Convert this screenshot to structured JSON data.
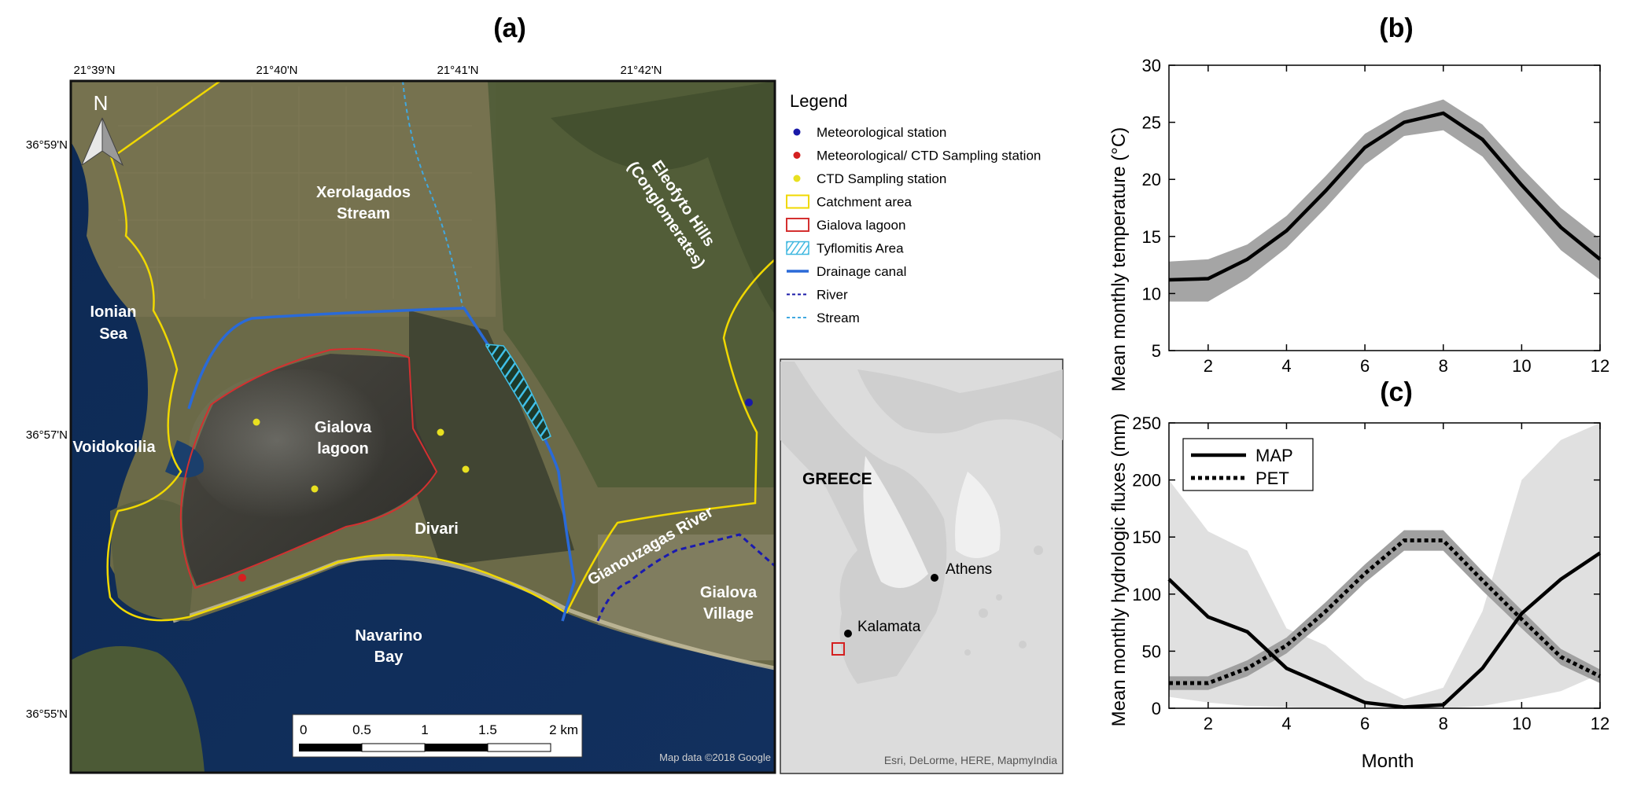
{
  "panel_a": {
    "label": "(a)",
    "lon_ticks": [
      "21°39'N",
      "21°40'N",
      "21°41'N",
      "21°42'N"
    ],
    "lat_ticks": [
      "36°59'N",
      "36°57'N",
      "36°55'N"
    ],
    "north_arrow": "N",
    "place_labels": {
      "xerolagados_1": "Xerolagados",
      "xerolagados_2": "Stream",
      "eleofyto_1": "Eleofyto Hills",
      "eleofyto_2": "(Conglomerates)",
      "ionian_1": "Ionian",
      "ionian_2": "Sea",
      "voidokoilia": "Voidokoilia",
      "gialova_lagoon_1": "Gialova",
      "gialova_lagoon_2": "lagoon",
      "divari": "Divari",
      "gianouzagas": "Gianouzagas River",
      "gialova_village_1": "Gialova",
      "gialova_village_2": "Village",
      "navarino_1": "Navarino",
      "navarino_2": "Bay"
    },
    "scale_bar": {
      "ticks": [
        "0",
        "0.5",
        "1",
        "1.5",
        "2 km"
      ]
    },
    "attribution": "Map data ©2018 Google",
    "legend": {
      "title": "Legend",
      "items": [
        {
          "label": "Meteorological station",
          "symbol": "dot",
          "color": "#1a1aa8"
        },
        {
          "label": "Meteorological/ CTD Sampling station",
          "symbol": "dot",
          "color": "#d42020"
        },
        {
          "label": "CTD Sampling station",
          "symbol": "dot",
          "color": "#e8e020"
        },
        {
          "label": "Catchment  area",
          "symbol": "box",
          "color": "#f0d800"
        },
        {
          "label": "Gialova lagoon",
          "symbol": "box",
          "color": "#d43030"
        },
        {
          "label": "Tyflomitis Area",
          "symbol": "hatch",
          "color": "#40b8e0"
        },
        {
          "label": "Drainage canal",
          "symbol": "line",
          "color": "#2a6ad8"
        },
        {
          "label": "River",
          "symbol": "dash",
          "color": "#1a1aa8"
        },
        {
          "label": "Stream",
          "symbol": "dash",
          "color": "#40a8e0"
        }
      ]
    },
    "inset": {
      "country": "GREECE",
      "cities": [
        "Athens",
        "Kalamata"
      ],
      "attribution": "Esri, DeLorme, HERE, MapmyIndia"
    }
  },
  "chart_data": [
    {
      "panel": "(b)",
      "type": "line",
      "ylabel": "Mean monthly temperature (°C)",
      "xlim": [
        1,
        12
      ],
      "ylim": [
        5,
        30
      ],
      "xticks": [
        2,
        4,
        6,
        8,
        10,
        12
      ],
      "yticks": [
        5,
        10,
        15,
        20,
        25,
        30
      ],
      "x": [
        1,
        2,
        3,
        4,
        5,
        6,
        7,
        8,
        9,
        10,
        11,
        12
      ],
      "series": [
        {
          "values": [
            11.2,
            11.3,
            13.0,
            15.5,
            19.0,
            22.8,
            25.0,
            25.8,
            23.5,
            19.5,
            15.8,
            13.0
          ],
          "band_lower": [
            9.3,
            9.3,
            11.3,
            14.0,
            17.5,
            21.3,
            23.8,
            24.3,
            22.0,
            17.8,
            13.8,
            11.2
          ],
          "band_upper": [
            12.8,
            13.0,
            14.3,
            16.8,
            20.3,
            24.0,
            26.0,
            27.0,
            24.8,
            21.0,
            17.5,
            14.8
          ]
        }
      ],
      "grid": false
    },
    {
      "panel": "(c)",
      "type": "line",
      "ylabel": "Mean monthly hydrologic fluxes (mm)",
      "xlabel": "Month",
      "xlim": [
        1,
        12
      ],
      "ylim": [
        0,
        250
      ],
      "xticks": [
        2,
        4,
        6,
        8,
        10,
        12
      ],
      "yticks": [
        0,
        50,
        100,
        150,
        200,
        250
      ],
      "x": [
        1,
        2,
        3,
        4,
        5,
        6,
        7,
        8,
        9,
        10,
        11,
        12
      ],
      "legend_position": "top-left",
      "series": [
        {
          "name": "MAP",
          "style": "solid",
          "values": [
            113,
            80,
            67,
            35,
            20,
            5,
            1,
            3,
            35,
            83,
            113,
            136
          ],
          "band_lower": [
            10,
            5,
            2,
            1,
            0,
            0,
            0,
            0,
            2,
            8,
            15,
            30
          ],
          "band_upper": [
            200,
            155,
            138,
            70,
            55,
            25,
            8,
            18,
            85,
            200,
            235,
            250
          ]
        },
        {
          "name": "PET",
          "style": "dotted",
          "values": [
            22,
            22,
            35,
            55,
            85,
            118,
            147,
            147,
            112,
            78,
            45,
            28
          ],
          "band_lower": [
            16,
            16,
            28,
            48,
            77,
            110,
            138,
            138,
            103,
            70,
            38,
            22
          ],
          "band_upper": [
            28,
            28,
            42,
            62,
            93,
            126,
            156,
            156,
            120,
            86,
            52,
            34
          ]
        }
      ],
      "grid": false
    }
  ]
}
